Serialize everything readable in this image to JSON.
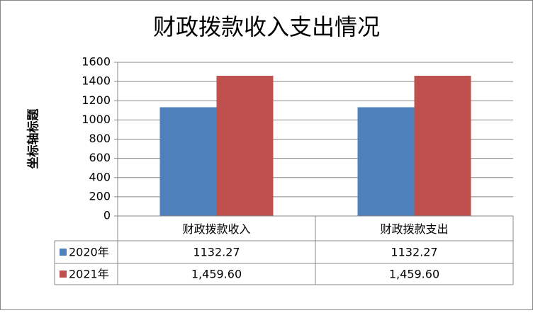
{
  "chart_data": {
    "type": "bar",
    "title": "财政拨款收入支出情况",
    "y_label": "坐标轴标题",
    "categories": [
      "财政拨款收入",
      "财政拨款支出"
    ],
    "series": [
      {
        "name": "2020年",
        "color": "#4f81bd",
        "values": [
          1132.27,
          1132.27
        ]
      },
      {
        "name": "2021年",
        "color": "#c0504d",
        "values": [
          1459.6,
          1459.6
        ],
        "value_labels": [
          "1,459.60",
          "1,459.60"
        ]
      }
    ],
    "ylim": [
      0,
      1600
    ],
    "yticks": [
      0,
      200,
      400,
      600,
      800,
      1000,
      1200,
      1400,
      1600
    ],
    "grid": true,
    "data_table": true
  }
}
